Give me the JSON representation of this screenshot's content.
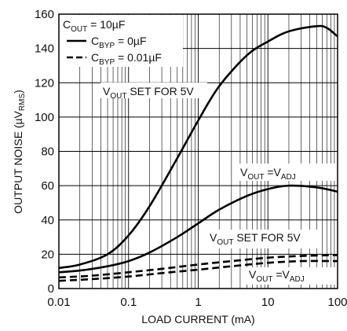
{
  "chart_data": {
    "type": "line",
    "xlabel": "LOAD CURRENT (mA)",
    "ylabel": {
      "main": "OUTPUT NOISE (",
      "mu": "µ",
      "v": "V",
      "sub": "RMS",
      "close": ")"
    },
    "xscale": "log",
    "xlim": [
      0.01,
      100
    ],
    "ylim": [
      0,
      160
    ],
    "grid": true,
    "x_ticks": [
      0.01,
      0.1,
      1,
      10,
      100
    ],
    "x_tick_labels": [
      "0.01",
      "0.1",
      "1",
      "10",
      "100"
    ],
    "y_ticks": [
      0,
      20,
      40,
      60,
      80,
      100,
      120,
      140,
      160
    ],
    "y_tick_labels": [
      "0",
      "20",
      "40",
      "60",
      "80",
      "100",
      "120",
      "140",
      "160"
    ],
    "legend": {
      "placement": "top-left",
      "header": {
        "a": "C",
        "sub": "OUT",
        "b": " = 10",
        "mu": "µ",
        "c": "F"
      },
      "entries": [
        {
          "a": "C",
          "sub": "BYP",
          "b": " = 0",
          "mu": "µ",
          "c": "F",
          "style": "solid"
        },
        {
          "a": "C",
          "sub": "BYP",
          "b": " = 0.01",
          "mu": "µ",
          "c": "F",
          "style": "dashed"
        }
      ]
    },
    "annotations": [
      {
        "a": "V",
        "sub": "OUT",
        "b": " SET FOR 5V"
      },
      {
        "a": "V",
        "sub": "OUT",
        "b": " =V",
        "sub2": "ADJ"
      },
      {
        "a": "V",
        "sub": "OUT",
        "b": " SET FOR 5V"
      },
      {
        "a": "V",
        "sub": "OUT",
        "b": " =V",
        "sub2": "ADJ"
      }
    ],
    "series": [
      {
        "style": "solid",
        "x": [
          0.01,
          0.02,
          0.05,
          0.1,
          0.2,
          0.5,
          1,
          2,
          5,
          10,
          20,
          50,
          70,
          100
        ],
        "y": [
          12,
          14,
          20,
          31,
          48,
          76,
          98,
          118,
          136,
          144,
          150,
          153,
          152,
          147
        ]
      },
      {
        "style": "solid",
        "x": [
          0.01,
          0.02,
          0.05,
          0.1,
          0.2,
          0.5,
          1,
          2,
          5,
          10,
          20,
          50,
          100
        ],
        "y": [
          9.5,
          10.5,
          13,
          16,
          21,
          30,
          38,
          46,
          54,
          58,
          60,
          59,
          56.5
        ]
      },
      {
        "style": "dashed",
        "x": [
          0.01,
          0.03,
          0.1,
          0.3,
          1,
          3,
          10,
          30,
          100
        ],
        "y": [
          6.5,
          7.5,
          9.5,
          11.5,
          14,
          16,
          18,
          19,
          19.5
        ]
      },
      {
        "style": "dashed",
        "x": [
          0.01,
          0.03,
          0.1,
          0.3,
          1,
          3,
          10,
          30,
          100
        ],
        "y": [
          4.5,
          5.5,
          7,
          9,
          11,
          13,
          15,
          16,
          16
        ]
      }
    ]
  }
}
